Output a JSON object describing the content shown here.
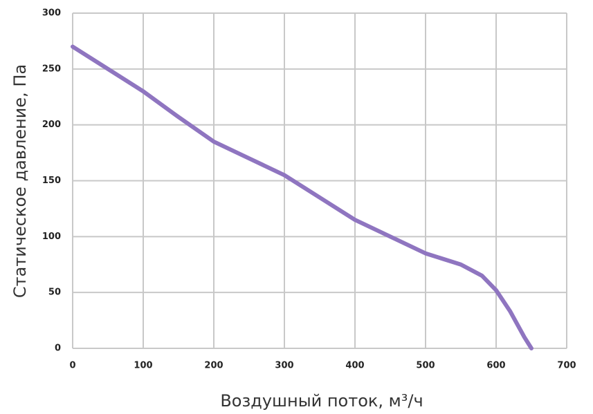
{
  "chart_data": {
    "type": "line",
    "x_label": "Воздушный поток, м³/ч",
    "y_label": "Статическое давление, Па",
    "x": [
      0,
      50,
      100,
      150,
      200,
      250,
      300,
      350,
      400,
      450,
      500,
      550,
      580,
      600,
      620,
      640,
      650
    ],
    "values": [
      270,
      250,
      230,
      207,
      185,
      170,
      155,
      135,
      115,
      100,
      85,
      75,
      65,
      52,
      33,
      10,
      0
    ],
    "color": "#8f75c0",
    "xlim": [
      0,
      700
    ],
    "xticks": [
      0,
      100,
      200,
      300,
      400,
      500,
      600,
      700
    ],
    "ylim": [
      0,
      300
    ],
    "yticks": [
      0,
      50,
      100,
      150,
      200,
      250,
      300
    ],
    "grid": true
  }
}
